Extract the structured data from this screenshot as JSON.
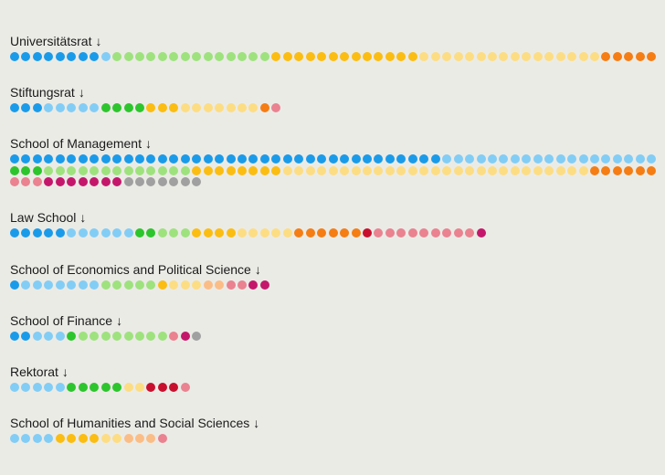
{
  "chart_data": {
    "type": "dot-strip",
    "palette": {
      "blue": "#1a9bea",
      "lightblue": "#82cdf6",
      "green": "#2dc52d",
      "lightgreen": "#9ee27e",
      "orange": "#fbbd11",
      "lightyellow": "#fddd83",
      "peach": "#fbbd86",
      "darkorange": "#f57d14",
      "red": "#c8102e",
      "pink": "#ea8290",
      "magenta": "#c4176b",
      "gray": "#a0a0a0"
    },
    "groups": [
      {
        "name": "Universitätsrat",
        "arrow": "↓",
        "rows": [
          [
            [
              "blue",
              8
            ],
            [
              "lightblue",
              1
            ],
            [
              "lightgreen",
              14
            ],
            [
              "orange",
              13
            ],
            [
              "lightyellow",
              16
            ],
            [
              "darkorange",
              6
            ]
          ]
        ]
      },
      {
        "name": "Stiftungsrat",
        "arrow": "↓",
        "rows": [
          [
            [
              "blue",
              3
            ],
            [
              "lightblue",
              5
            ],
            [
              "green",
              4
            ],
            [
              "orange",
              3
            ],
            [
              "lightyellow",
              7
            ],
            [
              "darkorange",
              1
            ],
            [
              "pink",
              1
            ]
          ]
        ]
      },
      {
        "name": "School of Management",
        "arrow": "↓",
        "rows": [
          [
            [
              "blue",
              38
            ],
            [
              "lightblue",
              21
            ]
          ],
          [
            [
              "green",
              3
            ],
            [
              "lightgreen",
              13
            ],
            [
              "orange",
              8
            ],
            [
              "lightyellow",
              27
            ],
            [
              "darkorange",
              8
            ]
          ],
          [
            [
              "pink",
              3
            ],
            [
              "magenta",
              7
            ],
            [
              "gray",
              7
            ]
          ]
        ]
      },
      {
        "name": "Law School",
        "arrow": "↓",
        "rows": [
          [
            [
              "blue",
              5
            ],
            [
              "lightblue",
              6
            ],
            [
              "green",
              2
            ],
            [
              "lightgreen",
              3
            ],
            [
              "orange",
              4
            ],
            [
              "lightyellow",
              5
            ],
            [
              "darkorange",
              6
            ],
            [
              "red",
              1
            ],
            [
              "pink",
              9
            ],
            [
              "magenta",
              1
            ]
          ]
        ]
      },
      {
        "name": "School of Economics and Political Science",
        "arrow": "↓",
        "rows": [
          [
            [
              "blue",
              1
            ],
            [
              "lightblue",
              7
            ],
            [
              "lightgreen",
              5
            ],
            [
              "orange",
              1
            ],
            [
              "lightyellow",
              3
            ],
            [
              "peach",
              2
            ],
            [
              "pink",
              2
            ],
            [
              "magenta",
              2
            ]
          ]
        ]
      },
      {
        "name": "School of Finance",
        "arrow": "↓",
        "rows": [
          [
            [
              "blue",
              2
            ],
            [
              "lightblue",
              3
            ],
            [
              "green",
              1
            ],
            [
              "lightgreen",
              8
            ],
            [
              "pink",
              1
            ],
            [
              "magenta",
              1
            ],
            [
              "gray",
              1
            ]
          ]
        ]
      },
      {
        "name": "Rektorat",
        "arrow": "↓",
        "rows": [
          [
            [
              "lightblue",
              5
            ],
            [
              "green",
              5
            ],
            [
              "lightyellow",
              2
            ],
            [
              "red",
              3
            ],
            [
              "pink",
              1
            ]
          ]
        ]
      },
      {
        "name": "School of Humanities and Social Sciences",
        "arrow": "↓",
        "rows": [
          [
            [
              "lightblue",
              4
            ],
            [
              "orange",
              4
            ],
            [
              "lightyellow",
              2
            ],
            [
              "peach",
              3
            ],
            [
              "pink",
              1
            ]
          ]
        ]
      }
    ]
  }
}
